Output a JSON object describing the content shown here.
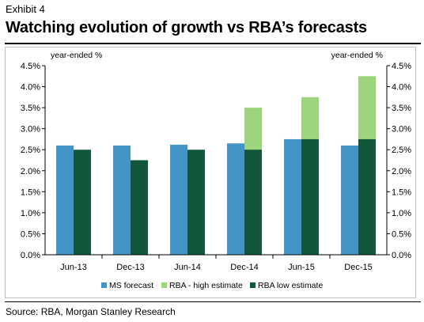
{
  "header": {
    "exhibit": "Exhibit 4",
    "title": "Watching evolution of growth vs RBA’s forecasts"
  },
  "footer": {
    "source": "Source: RBA, Morgan Stanley Research"
  },
  "chart_data": {
    "type": "bar",
    "title": "Watching evolution of growth vs RBA’s forecasts",
    "ylabel_left": "year-ended %",
    "ylabel_right": "year-ended %",
    "ylim": [
      0,
      4.5
    ],
    "yticks": [
      "0.0%",
      "0.5%",
      "1.0%",
      "1.5%",
      "2.0%",
      "2.5%",
      "3.0%",
      "3.5%",
      "4.0%",
      "4.5%"
    ],
    "categories": [
      "Jun-13",
      "Dec-13",
      "Jun-14",
      "Dec-14",
      "Jun-15",
      "Dec-15"
    ],
    "series": [
      {
        "name": "MS forecast",
        "values": [
          2.6,
          2.6,
          2.62,
          2.65,
          2.75,
          2.6
        ],
        "color": "#4395c7"
      },
      {
        "name": "RBA - high estimate",
        "values": [
          null,
          null,
          null,
          3.5,
          3.75,
          4.25
        ],
        "color": "#9dd47e"
      },
      {
        "name": "RBA low  estimate",
        "values": [
          2.5,
          2.25,
          2.5,
          2.5,
          2.75,
          2.75
        ],
        "color": "#13573b"
      }
    ],
    "grid": false,
    "legend_position": "bottom"
  }
}
